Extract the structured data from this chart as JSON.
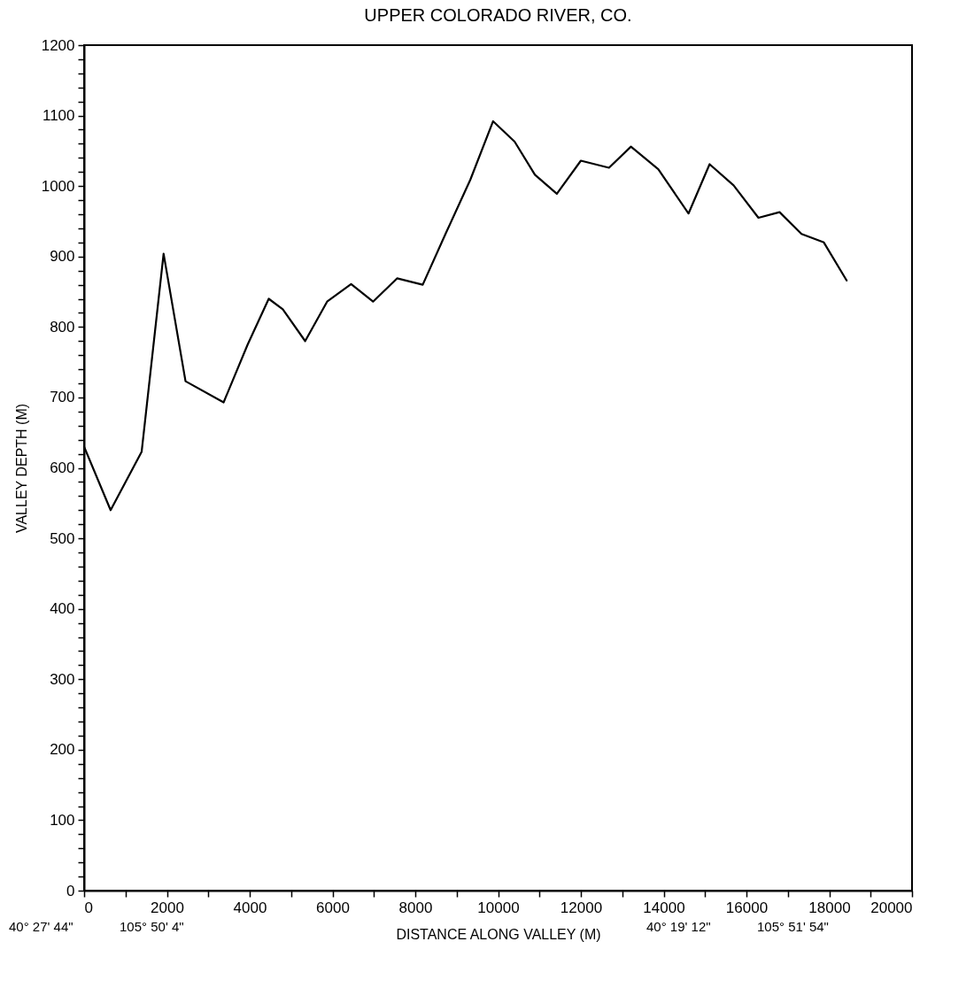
{
  "chart_data": {
    "type": "line",
    "title": "UPPER COLORADO RIVER, CO.",
    "xlabel": "DISTANCE ALONG VALLEY  (M)",
    "ylabel": "VALLEY DEPTH  (M)",
    "annotations": [
      "40° 27' 44\"",
      "105° 50' 4\"",
      "40° 19' 12\"",
      "105° 51' 54\""
    ],
    "x": [
      0,
      640,
      1390,
      1920,
      2450,
      3370,
      3950,
      4460,
      4800,
      5340,
      5870,
      6450,
      6980,
      7560,
      8180,
      8730,
      9330,
      9880,
      10400,
      10890,
      11420,
      12000,
      12680,
      13210,
      13870,
      14600,
      15110,
      15690,
      16290,
      16800,
      17330,
      17870,
      18420
    ],
    "series": [
      {
        "color": "#000000",
        "values": [
          630,
          540,
          623,
          904,
          723,
          693,
          775,
          840,
          825,
          780,
          836,
          861,
          836,
          869,
          860,
          932,
          1009,
          1092,
          1063,
          1016,
          989,
          1036,
          1026,
          1056,
          1024,
          961,
          1031,
          1001,
          955,
          963,
          932,
          920,
          866
        ]
      }
    ],
    "xlim": [
      0,
      20000
    ],
    "ylim": [
      0,
      1200
    ],
    "xticks": [
      0,
      {
        "value": 1000,
        "label": null
      },
      2000,
      {
        "value": 3000,
        "label": null
      },
      4000,
      {
        "value": 5000,
        "label": null
      },
      6000,
      {
        "value": 7000,
        "label": null
      },
      8000,
      {
        "value": 9000,
        "label": null
      },
      10000,
      {
        "value": 11000,
        "label": null
      },
      12000,
      {
        "value": 13000,
        "label": null
      },
      14000,
      {
        "value": 15000,
        "label": null
      },
      16000,
      {
        "value": 17000,
        "label": null
      },
      18000,
      {
        "value": 19000,
        "label": null
      },
      20000
    ],
    "yticks": [
      0,
      {
        "value": 20,
        "label": null
      },
      {
        "value": 40,
        "label": null
      },
      {
        "value": 60,
        "label": null
      },
      {
        "value": 80,
        "label": null
      },
      100,
      {
        "value": 120,
        "label": null
      },
      {
        "value": 140,
        "label": null
      },
      {
        "value": 160,
        "label": null
      },
      {
        "value": 180,
        "label": null
      },
      200,
      {
        "value": 220,
        "label": null
      },
      {
        "value": 240,
        "label": null
      },
      {
        "value": 260,
        "label": null
      },
      {
        "value": 280,
        "label": null
      },
      300,
      {
        "value": 320,
        "label": null
      },
      {
        "value": 340,
        "label": null
      },
      {
        "value": 360,
        "label": null
      },
      {
        "value": 380,
        "label": null
      },
      400,
      {
        "value": 420,
        "label": null
      },
      {
        "value": 440,
        "label": null
      },
      {
        "value": 460,
        "label": null
      },
      {
        "value": 480,
        "label": null
      },
      500,
      {
        "value": 520,
        "label": null
      },
      {
        "value": 540,
        "label": null
      },
      {
        "value": 560,
        "label": null
      },
      {
        "value": 580,
        "label": null
      },
      600,
      {
        "value": 620,
        "label": null
      },
      {
        "value": 640,
        "label": null
      },
      {
        "value": 660,
        "label": null
      },
      {
        "value": 680,
        "label": null
      },
      700,
      {
        "value": 720,
        "label": null
      },
      {
        "value": 740,
        "label": null
      },
      {
        "value": 760,
        "label": null
      },
      {
        "value": 780,
        "label": null
      },
      800,
      {
        "value": 820,
        "label": null
      },
      {
        "value": 840,
        "label": null
      },
      {
        "value": 860,
        "label": null
      },
      {
        "value": 880,
        "label": null
      },
      900,
      {
        "value": 920,
        "label": null
      },
      {
        "value": 940,
        "label": null
      },
      {
        "value": 960,
        "label": null
      },
      {
        "value": 980,
        "label": null
      },
      1000,
      {
        "value": 1020,
        "label": null
      },
      {
        "value": 1040,
        "label": null
      },
      {
        "value": 1060,
        "label": null
      },
      {
        "value": 1080,
        "label": null
      },
      1100,
      {
        "value": 1120,
        "label": null
      },
      {
        "value": 1140,
        "label": null
      },
      {
        "value": 1160,
        "label": null
      },
      {
        "value": 1180,
        "label": null
      },
      1200
    ],
    "grid": false,
    "marker": "none",
    "line_style": "solid"
  }
}
